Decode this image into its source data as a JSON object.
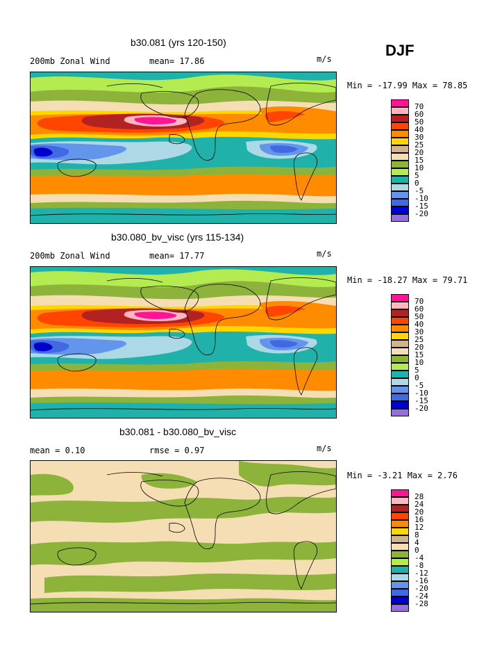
{
  "season": "DJF",
  "panels": [
    {
      "title": "b30.081 (yrs 120-150)",
      "left_label": "200mb Zonal Wind",
      "mid_label": "mean=  17.86",
      "units": "m/s",
      "stats": "Min = -17.99 Max =  78.85",
      "legend": [
        "70",
        "60",
        "50",
        "40",
        "30",
        "25",
        "20",
        "15",
        "10",
        "5",
        "0",
        "-5",
        "-10",
        "-15",
        "-20"
      ]
    },
    {
      "title": "b30.080_bv_visc (yrs 115-134)",
      "left_label": "200mb Zonal Wind",
      "mid_label": "mean=  17.77",
      "units": "m/s",
      "stats": "Min = -18.27 Max =  79.71",
      "legend": [
        "70",
        "60",
        "50",
        "40",
        "30",
        "25",
        "20",
        "15",
        "10",
        "5",
        "0",
        "-5",
        "-10",
        "-15",
        "-20"
      ]
    },
    {
      "title": "b30.081 - b30.080_bv_visc",
      "left_label": "mean =    0.10",
      "mid_label": "rmse =   0.97",
      "units": "m/s",
      "stats": "Min =  -3.21 Max =    2.76",
      "legend": [
        "28",
        "24",
        "20",
        "16",
        "12",
        "8",
        "4",
        "0",
        "-4",
        "-8",
        "-12",
        "-16",
        "-20",
        "-24",
        "-28"
      ]
    }
  ],
  "colors": {
    "scale": [
      "#ff1493",
      "#ffb6c1",
      "#b22222",
      "#ff4500",
      "#ff8c00",
      "#ffd700",
      "#d2b48c",
      "#f5deb3",
      "#8db33a",
      "#b4eb50",
      "#20b2aa",
      "#add8e6",
      "#6495ed",
      "#4169e1",
      "#0000cd",
      "#9370db"
    ],
    "diff_tan": "#f5deb3",
    "diff_green": "#8db33a"
  }
}
